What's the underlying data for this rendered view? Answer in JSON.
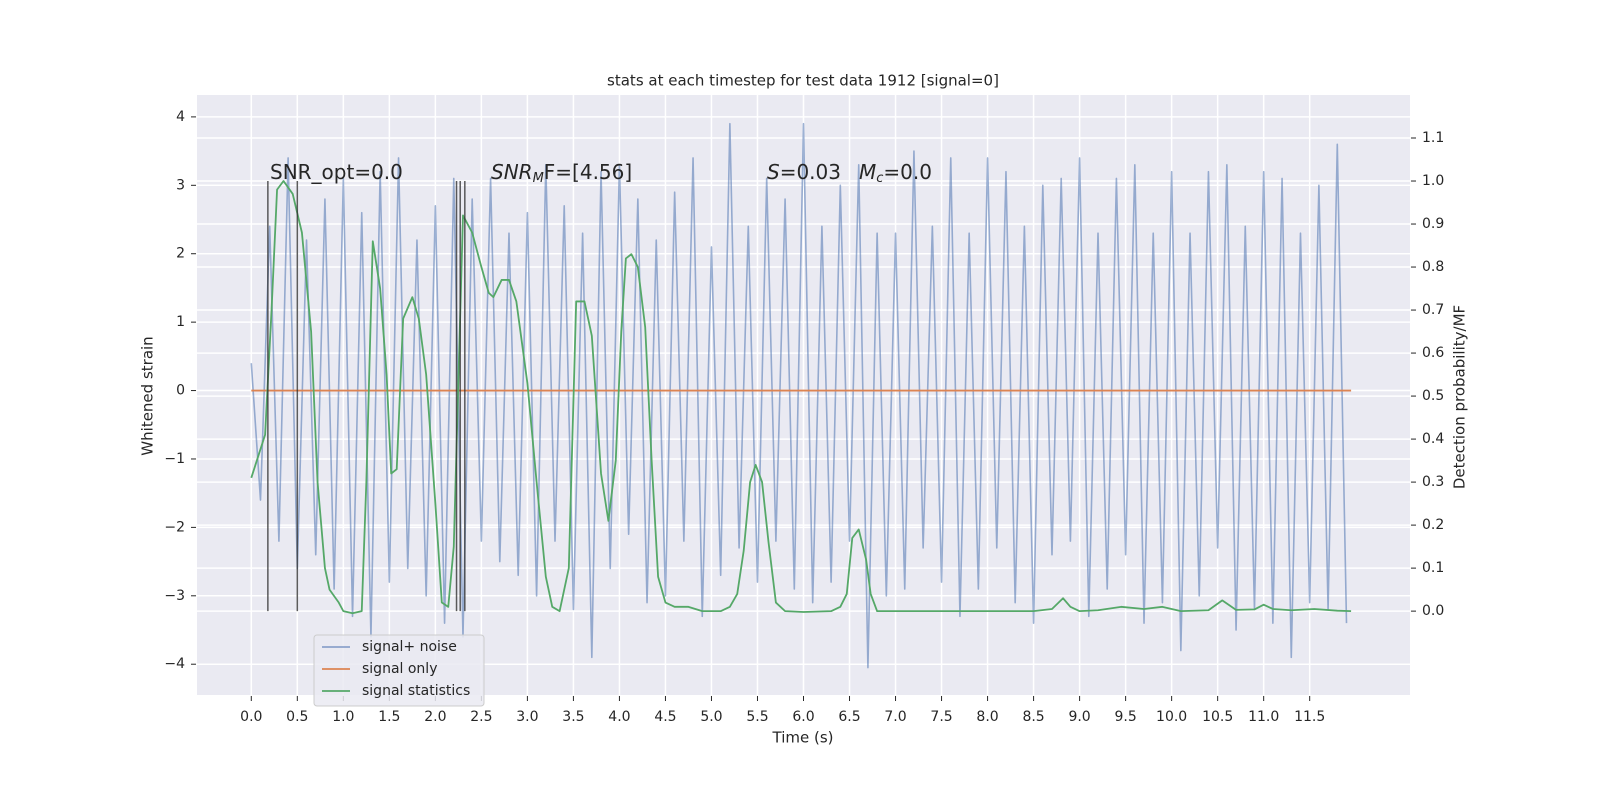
{
  "chart_data": {
    "type": "line",
    "title": "stats at each timestep for test data 1912 [signal=0]",
    "xlabel": "Time (s)",
    "ylabel": "Whitened strain",
    "y2label": "Detection probability/MF",
    "xlim": [
      -0.59,
      12.59
    ],
    "ylim": [
      -4.45,
      4.32
    ],
    "y2lim": [
      -0.195,
      1.2
    ],
    "xticks": [
      {
        "value": 0,
        "label": "0.0"
      },
      0.5,
      {
        "value": 1,
        "label": "1.0"
      },
      1.5,
      {
        "value": 2,
        "label": "2.0"
      },
      2.5,
      {
        "value": 3,
        "label": "3.0"
      },
      3.5,
      {
        "value": 4,
        "label": "4.0"
      },
      4.5,
      {
        "value": 5,
        "label": "5.0"
      },
      5.5,
      {
        "value": 6,
        "label": "6.0"
      },
      6.5,
      {
        "value": 7,
        "label": "7.0"
      },
      7.5,
      {
        "value": 8,
        "label": "8.0"
      },
      8.5,
      {
        "value": 9,
        "label": "9.0"
      },
      9.5,
      {
        "value": 10,
        "label": "10.0"
      },
      10.5,
      {
        "value": 11,
        "label": "11.0"
      },
      11.5
    ],
    "yticks": [
      {
        "value": -4,
        "label": "−4"
      },
      {
        "value": -3,
        "label": "−3"
      },
      {
        "value": -2,
        "label": "−2"
      },
      {
        "value": -1,
        "label": "−1"
      },
      0,
      1,
      2,
      3,
      4
    ],
    "y2ticks": [
      {
        "value": 0,
        "label": "0.0"
      },
      0.1,
      0.2,
      0.3,
      0.4,
      0.5,
      0.6,
      0.7,
      0.8,
      0.9,
      {
        "value": 1,
        "label": "1.0"
      },
      1.1
    ],
    "grid": true,
    "legend": "lower left",
    "series": [
      {
        "name": "signal+ noise",
        "color": "#4c72b0",
        "axis": "y",
        "x": [
          0.0,
          0.1,
          0.2,
          0.3,
          0.4,
          0.5,
          0.6,
          0.7,
          0.8,
          0.9,
          1.0,
          1.1,
          1.2,
          1.3,
          1.4,
          1.5,
          1.6,
          1.7,
          1.8,
          1.9,
          2.0,
          2.1,
          2.2,
          2.3,
          2.4,
          2.5,
          2.6,
          2.7,
          2.8,
          2.9,
          3.0,
          3.1,
          3.2,
          3.3,
          3.4,
          3.5,
          3.6,
          3.7,
          3.8,
          3.9,
          4.0,
          4.1,
          4.2,
          4.3,
          4.4,
          4.5,
          4.6,
          4.7,
          4.8,
          4.9,
          5.0,
          5.1,
          5.2,
          5.3,
          5.4,
          5.5,
          5.6,
          5.7,
          5.8,
          5.9,
          6.0,
          6.1,
          6.2,
          6.3,
          6.4,
          6.5,
          6.6,
          6.7,
          6.8,
          6.9,
          7.0,
          7.1,
          7.2,
          7.3,
          7.4,
          7.5,
          7.6,
          7.7,
          7.8,
          7.9,
          8.0,
          8.1,
          8.2,
          8.3,
          8.4,
          8.5,
          8.6,
          8.7,
          8.8,
          8.9,
          9.0,
          9.1,
          9.2,
          9.3,
          9.4,
          9.5,
          9.6,
          9.7,
          9.8,
          9.9,
          10.0,
          10.1,
          10.2,
          10.3,
          10.4,
          10.5,
          10.6,
          10.7,
          10.8,
          10.9,
          11.0,
          11.1,
          11.2,
          11.3,
          11.4,
          11.5,
          11.6,
          11.7,
          11.8,
          11.9
        ],
        "values": [
          0.4,
          -1.6,
          2.4,
          -2.2,
          3.4,
          -2.6,
          2.2,
          -2.4,
          2.8,
          -2.9,
          3.1,
          -3.3,
          2.6,
          -3.6,
          3.2,
          -2.8,
          3.4,
          -2.6,
          2.2,
          -3.0,
          2.7,
          -3.4,
          3.1,
          -3.6,
          2.8,
          -2.2,
          3.1,
          -2.5,
          2.3,
          -2.7,
          2.6,
          -3.0,
          3.3,
          -2.2,
          2.7,
          -3.2,
          2.3,
          -3.9,
          3.2,
          -2.6,
          3.3,
          -2.1,
          2.8,
          -3.1,
          2.2,
          -3.0,
          2.9,
          -2.2,
          3.4,
          -3.3,
          2.1,
          -2.7,
          3.9,
          -2.3,
          2.4,
          -2.8,
          3.1,
          -2.2,
          2.8,
          -2.9,
          3.9,
          -3.1,
          2.4,
          -2.8,
          3.0,
          -2.2,
          3.3,
          -4.05,
          2.3,
          -3.0,
          2.3,
          -2.9,
          3.5,
          -2.3,
          2.4,
          -2.8,
          3.4,
          -3.3,
          2.3,
          -2.9,
          3.4,
          -2.3,
          3.2,
          -3.1,
          2.4,
          -3.4,
          3.0,
          -2.4,
          3.1,
          -2.2,
          3.4,
          -3.3,
          2.3,
          -2.9,
          3.1,
          -2.4,
          3.3,
          -3.4,
          2.3,
          -3.1,
          3.2,
          -3.8,
          2.3,
          -3.0,
          3.2,
          -2.3,
          3.3,
          -3.5,
          2.4,
          -3.2,
          3.2,
          -3.4,
          3.1,
          -3.9,
          2.3,
          -3.1,
          3.0,
          -3.2,
          3.6,
          -3.4
        ]
      },
      {
        "name": "signal only",
        "color": "#dd8452",
        "axis": "y",
        "x": [
          0.0,
          11.95
        ],
        "values": [
          0,
          0
        ]
      },
      {
        "name": "signal statistics",
        "color": "#55a868",
        "axis": "y2",
        "x": [
          0.0,
          0.15,
          0.22,
          0.28,
          0.35,
          0.45,
          0.55,
          0.65,
          0.72,
          0.8,
          0.85,
          0.95,
          1.0,
          1.1,
          1.2,
          1.25,
          1.32,
          1.4,
          1.47,
          1.52,
          1.58,
          1.65,
          1.75,
          1.82,
          1.9,
          2.0,
          2.07,
          2.14,
          2.2,
          2.3,
          2.4,
          2.5,
          2.58,
          2.63,
          2.72,
          2.8,
          2.88,
          3.0,
          3.1,
          3.2,
          3.27,
          3.35,
          3.45,
          3.53,
          3.62,
          3.7,
          3.8,
          3.88,
          3.96,
          4.02,
          4.07,
          4.13,
          4.2,
          4.28,
          4.35,
          4.42,
          4.5,
          4.6,
          4.75,
          4.9,
          5.1,
          5.2,
          5.28,
          5.35,
          5.42,
          5.48,
          5.55,
          5.62,
          5.7,
          5.8,
          6.0,
          6.3,
          6.4,
          6.47,
          6.53,
          6.6,
          6.68,
          6.73,
          6.8,
          7.0,
          7.5,
          8.0,
          8.5,
          8.7,
          8.82,
          8.9,
          9.0,
          9.2,
          9.45,
          9.7,
          9.9,
          10.1,
          10.4,
          10.55,
          10.7,
          10.9,
          11.0,
          11.1,
          11.3,
          11.55,
          11.8,
          11.95
        ],
        "values": [
          0.31,
          0.41,
          0.7,
          0.98,
          1.0,
          0.97,
          0.88,
          0.65,
          0.3,
          0.1,
          0.05,
          0.02,
          0.0,
          -0.005,
          0.0,
          0.3,
          0.86,
          0.75,
          0.55,
          0.32,
          0.33,
          0.68,
          0.73,
          0.68,
          0.55,
          0.25,
          0.02,
          0.01,
          0.15,
          0.92,
          0.88,
          0.8,
          0.74,
          0.73,
          0.77,
          0.77,
          0.72,
          0.53,
          0.3,
          0.08,
          0.01,
          0.0,
          0.1,
          0.72,
          0.72,
          0.64,
          0.32,
          0.21,
          0.35,
          0.65,
          0.82,
          0.83,
          0.8,
          0.66,
          0.35,
          0.08,
          0.02,
          0.01,
          0.01,
          0.0,
          0.0,
          0.01,
          0.04,
          0.14,
          0.3,
          0.34,
          0.3,
          0.16,
          0.02,
          0.0,
          -0.002,
          0.0,
          0.01,
          0.04,
          0.17,
          0.19,
          0.12,
          0.04,
          0.0,
          0.0,
          0.0,
          0.0,
          0.0,
          0.005,
          0.03,
          0.01,
          0.0,
          0.002,
          0.01,
          0.005,
          0.01,
          0.0,
          0.002,
          0.025,
          0.003,
          0.004,
          0.015,
          0.005,
          0.002,
          0.005,
          0.001,
          0.0
        ]
      }
    ],
    "vlines": {
      "x": [
        0.18,
        0.5,
        2.23,
        2.27,
        2.32
      ],
      "color": "#333333",
      "axis": "y2",
      "span": [
        0,
        1.0
      ]
    },
    "annotations": [
      [
        {
          "text": "SNR_opt=0.0"
        }
      ],
      [
        {
          "text": "SNR",
          "style": "italic"
        },
        {
          "text": "M",
          "style": "sub"
        },
        {
          "text": "F=[4.56]"
        }
      ],
      [
        {
          "text": "S",
          "style": "italic"
        },
        {
          "text": "=0.03"
        }
      ],
      [
        {
          "text": "M",
          "style": "italic"
        },
        {
          "text": "c",
          "style": "sub"
        },
        {
          "text": "=0.0"
        }
      ]
    ]
  }
}
